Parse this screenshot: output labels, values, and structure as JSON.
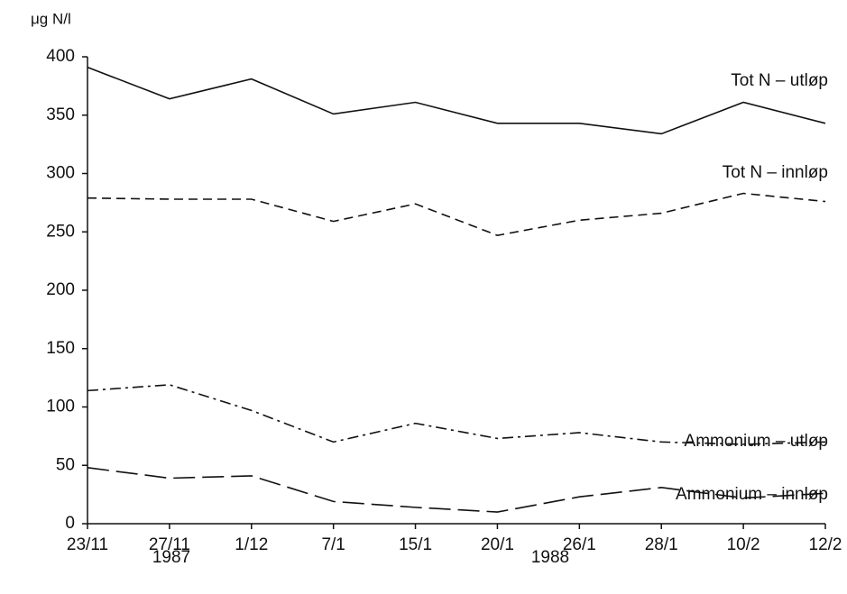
{
  "chart_data": {
    "type": "line",
    "y_label": "μg N/l",
    "categories": [
      "23/11",
      "27/11",
      "1/12",
      "7/1",
      "15/1",
      "20/1",
      "26/1",
      "28/1",
      "10/2",
      "12/2"
    ],
    "annotations": [
      "1987",
      "1988"
    ],
    "series": [
      {
        "name": "Tot N – utløp",
        "color": "#111111",
        "line_style": "solid",
        "values": [
          391,
          364,
          381,
          351,
          361,
          343,
          343,
          334,
          361,
          343
        ]
      },
      {
        "name": "Tot N – innløp",
        "color": "#111111",
        "line_style": "dashed",
        "values": [
          279,
          278,
          278,
          259,
          274,
          247,
          260,
          266,
          283,
          276
        ]
      },
      {
        "name": "Ammonium – utløp",
        "color": "#111111",
        "line_style": "dashdot",
        "values": [
          114,
          119,
          97,
          70,
          86,
          73,
          78,
          70,
          68,
          70
        ]
      },
      {
        "name": "Ammonium – innløp",
        "color": "#111111",
        "line_style": "longdash",
        "values": [
          48,
          39,
          41,
          19,
          14,
          10,
          23,
          31,
          22,
          26
        ]
      }
    ],
    "ylim": [
      0,
      400
    ],
    "yticks": [
      0,
      50,
      100,
      150,
      200,
      250,
      300,
      350,
      400
    ],
    "grid": false
  }
}
